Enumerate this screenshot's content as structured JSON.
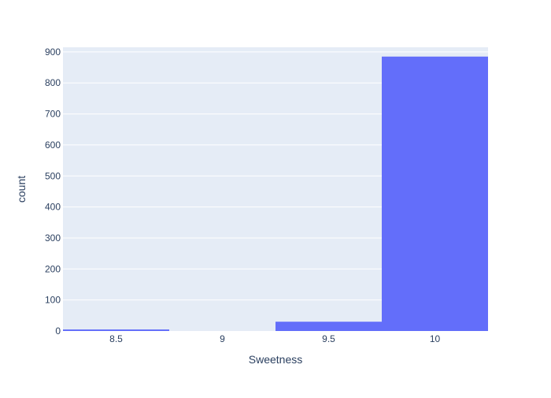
{
  "chart_data": {
    "type": "bar",
    "title": "",
    "xlabel": "Sweetness",
    "ylabel": "count",
    "x_ticks": [
      "8.5",
      "9",
      "9.5",
      "10"
    ],
    "y_ticks": [
      "0",
      "100",
      "200",
      "300",
      "400",
      "500",
      "600",
      "700",
      "800",
      "900"
    ],
    "xlim": [
      8.25,
      10.25
    ],
    "ylim": [
      0,
      915
    ],
    "grid": true,
    "legend": "none",
    "bins": [
      {
        "x0": 8.25,
        "x1": 8.75,
        "count": 5
      },
      {
        "x0": 8.75,
        "x1": 9.25,
        "count": 0
      },
      {
        "x0": 9.25,
        "x1": 9.75,
        "count": 30
      },
      {
        "x0": 9.75,
        "x1": 10.25,
        "count": 885
      }
    ],
    "colors": {
      "bar": "#636efa",
      "plot_bg": "#e5ecf6",
      "grid": "#ffffff",
      "text": "#2a3f5f"
    }
  }
}
